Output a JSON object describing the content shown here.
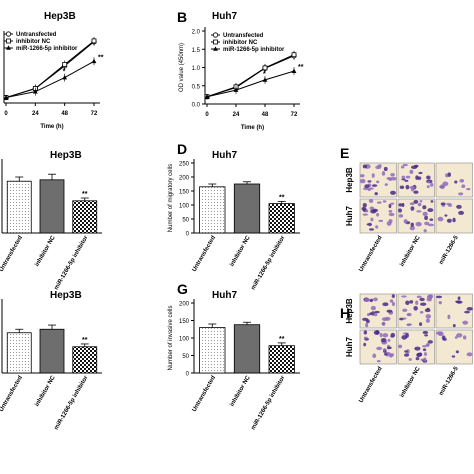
{
  "panels": [
    {
      "id": "A",
      "letter": "",
      "title": "Hep3B",
      "type": "line",
      "ylabel": "",
      "xlabel": "Time (h)",
      "x": [
        0,
        24,
        48,
        72
      ],
      "xticks": [
        "0",
        "24",
        "48",
        "72"
      ],
      "ylim": [
        0,
        1.5
      ],
      "yticks": [],
      "legend": [
        "Untransfected",
        "inhibitor NC",
        "miR-1266-5p inhibitor"
      ],
      "series": [
        {
          "name": "Untransfected",
          "marker": "circle",
          "values": [
            0.12,
            0.32,
            0.82,
            1.35
          ]
        },
        {
          "name": "inhibitor NC",
          "marker": "square",
          "values": [
            0.12,
            0.32,
            0.85,
            1.37
          ]
        },
        {
          "name": "miR-1266-5p inhibitor",
          "marker": "triangle",
          "values": [
            0.12,
            0.25,
            0.56,
            0.92
          ]
        }
      ],
      "annotations": [
        {
          "x": 48,
          "text": "*"
        },
        {
          "x": 72,
          "text": "**"
        }
      ]
    },
    {
      "id": "B",
      "letter": "B",
      "title": "Huh7",
      "type": "line",
      "ylabel": "OD value (450nm)",
      "xlabel": "Time (h)",
      "x": [
        0,
        24,
        48,
        72
      ],
      "xticks": [
        "0",
        "24",
        "48",
        "72"
      ],
      "ylim": [
        0,
        2.0
      ],
      "yticks": [
        "0.0",
        "0.5",
        "1.0",
        "1.5",
        "2.0"
      ],
      "legend": [
        "Untransfected",
        "inhibitor NC",
        "miR-1266-5p inhibitor"
      ],
      "series": [
        {
          "name": "Untransfected",
          "marker": "circle",
          "values": [
            0.2,
            0.45,
            0.98,
            1.32
          ]
        },
        {
          "name": "inhibitor NC",
          "marker": "square",
          "values": [
            0.2,
            0.47,
            0.99,
            1.35
          ]
        },
        {
          "name": "miR-1266-5p inhibitor",
          "marker": "triangle",
          "values": [
            0.2,
            0.38,
            0.66,
            0.9
          ]
        }
      ],
      "annotations": [
        {
          "x": 48,
          "text": "*"
        },
        {
          "x": 72,
          "text": "**"
        }
      ]
    },
    {
      "id": "C",
      "letter": "",
      "title": "Hep3B",
      "type": "bar",
      "ylabel": "",
      "ylim": [
        0,
        250
      ],
      "yticks": [],
      "categories": [
        "Untransfected",
        "inhibitor NC",
        "miR-1266-5p inhibitor"
      ],
      "values": [
        185,
        190,
        115
      ],
      "errors": [
        15,
        20,
        10
      ],
      "annotations": [
        "",
        "",
        "**"
      ]
    },
    {
      "id": "D",
      "letter": "D",
      "title": "Huh7",
      "type": "bar",
      "ylabel": "Number of migratory cells",
      "ylim": [
        0,
        250
      ],
      "yticks": [
        "0",
        "50",
        "100",
        "150",
        "200",
        "250"
      ],
      "categories": [
        "Untransfected",
        "inhibitor NC",
        "miR-1266-5p inhibitor"
      ],
      "values": [
        165,
        175,
        105
      ],
      "errors": [
        10,
        8,
        8
      ],
      "annotations": [
        "",
        "",
        "**"
      ]
    },
    {
      "id": "F",
      "letter": "",
      "title": "Hep3B",
      "type": "bar",
      "ylabel": "",
      "ylim": [
        0,
        200
      ],
      "yticks": [],
      "categories": [
        "Untransfected",
        "inhibitor NC",
        "miR-1266-5p inhibitor"
      ],
      "values": [
        115,
        125,
        75
      ],
      "errors": [
        10,
        12,
        8
      ],
      "annotations": [
        "",
        "",
        "**"
      ]
    },
    {
      "id": "G",
      "letter": "G",
      "title": "Huh7",
      "type": "bar",
      "ylabel": "Number of invasive cells",
      "ylim": [
        0,
        200
      ],
      "yticks": [
        "0",
        "50",
        "100",
        "150",
        "200"
      ],
      "categories": [
        "Untransfected",
        "inhibitor NC",
        "miR-1266-5p inhibitor"
      ],
      "values": [
        130,
        138,
        78
      ],
      "errors": [
        10,
        7,
        8
      ],
      "annotations": [
        "",
        "",
        "**"
      ]
    }
  ],
  "images": [
    {
      "id": "E",
      "letter": "E",
      "rows": [
        "Hep3B",
        "Huh7"
      ],
      "columns": [
        "Untransfected",
        "inhibitor NC",
        "miR-1266-5"
      ]
    },
    {
      "id": "H",
      "letter": "H",
      "rows": [
        "Hep3B",
        "Huh7"
      ],
      "columns": [
        "Untransfected",
        "inhibitor NC",
        "miR-1266-5"
      ]
    }
  ],
  "colors": {
    "stain_dark": "#4a2a86",
    "stain_light": "#8e6bbd",
    "background": "#f3e8d2"
  },
  "chart_data": [
    {
      "type": "line",
      "title": "Hep3B",
      "xlabel": "Time (h)",
      "ylabel": "",
      "x": [
        0,
        24,
        48,
        72
      ],
      "ylim": [
        0,
        1.5
      ],
      "series": [
        {
          "name": "Untransfected",
          "values": [
            0.12,
            0.32,
            0.82,
            1.35
          ]
        },
        {
          "name": "inhibitor NC",
          "values": [
            0.12,
            0.32,
            0.85,
            1.37
          ]
        },
        {
          "name": "miR-1266-5p inhibitor",
          "values": [
            0.12,
            0.25,
            0.56,
            0.92
          ]
        }
      ]
    },
    {
      "type": "line",
      "title": "Huh7",
      "xlabel": "Time (h)",
      "ylabel": "OD value (450nm)",
      "x": [
        0,
        24,
        48,
        72
      ],
      "ylim": [
        0,
        2.0
      ],
      "series": [
        {
          "name": "Untransfected",
          "values": [
            0.2,
            0.45,
            0.98,
            1.32
          ]
        },
        {
          "name": "inhibitor NC",
          "values": [
            0.2,
            0.47,
            0.99,
            1.35
          ]
        },
        {
          "name": "miR-1266-5p inhibitor",
          "values": [
            0.2,
            0.38,
            0.66,
            0.9
          ]
        }
      ]
    },
    {
      "type": "bar",
      "title": "Hep3B",
      "categories": [
        "Untransfected",
        "inhibitor NC",
        "miR-1266-5p inhibitor"
      ],
      "values": [
        185,
        190,
        115
      ]
    },
    {
      "type": "bar",
      "title": "Huh7",
      "ylabel": "Number of migratory cells",
      "categories": [
        "Untransfected",
        "inhibitor NC",
        "miR-1266-5p inhibitor"
      ],
      "values": [
        165,
        175,
        105
      ],
      "ylim": [
        0,
        250
      ]
    },
    {
      "type": "bar",
      "title": "Hep3B",
      "categories": [
        "Untransfected",
        "inhibitor NC",
        "miR-1266-5p inhibitor"
      ],
      "values": [
        115,
        125,
        75
      ]
    },
    {
      "type": "bar",
      "title": "Huh7",
      "ylabel": "Number of invasive cells",
      "categories": [
        "Untransfected",
        "inhibitor NC",
        "miR-1266-5p inhibitor"
      ],
      "values": [
        130,
        138,
        78
      ],
      "ylim": [
        0,
        200
      ]
    }
  ]
}
